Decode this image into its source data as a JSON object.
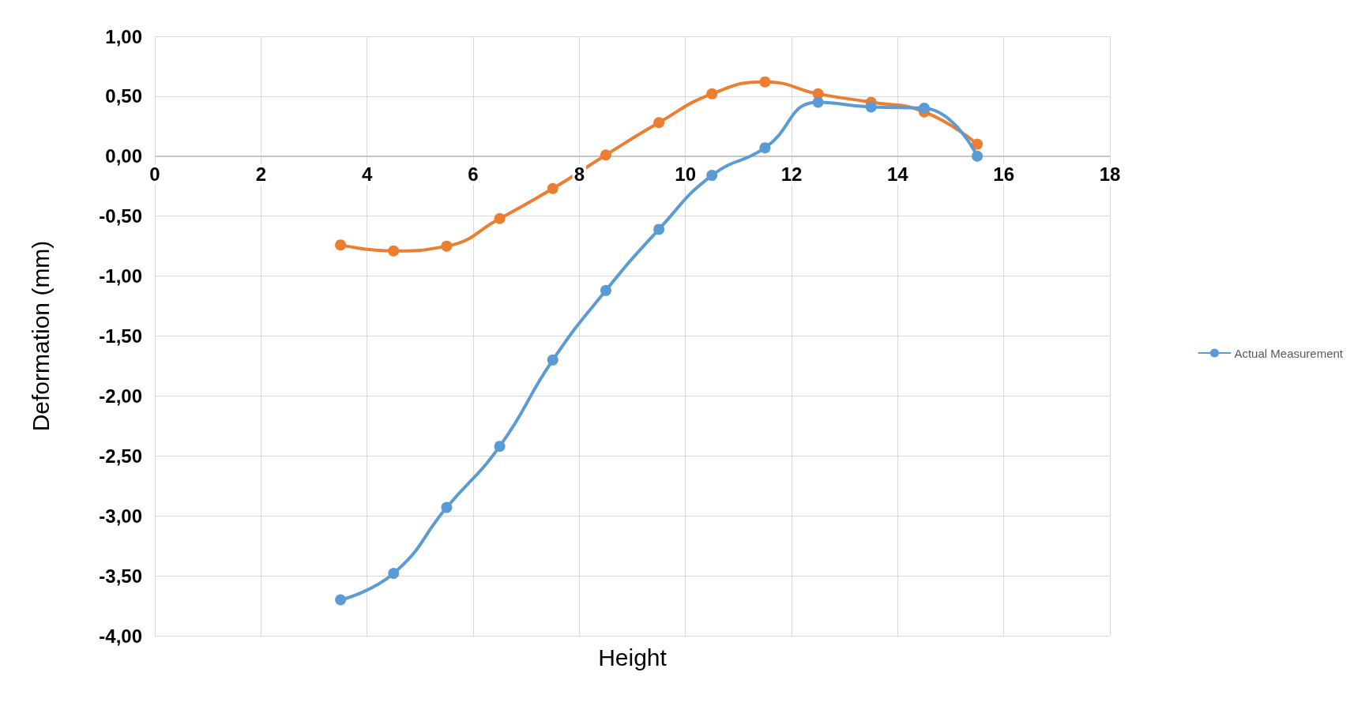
{
  "chart_data": {
    "type": "line",
    "xlabel": "Height",
    "ylabel": "Deformation (mm)",
    "x": [
      3.5,
      4.5,
      5.5,
      6.5,
      7.5,
      8.5,
      9.5,
      10.5,
      11.5,
      12.5,
      13.5,
      14.5,
      15.5
    ],
    "series": [
      {
        "name": "Actual Measurement",
        "color": "#5b9bd5",
        "values": [
          -3.7,
          -3.48,
          -2.93,
          -2.42,
          -1.7,
          -1.12,
          -0.61,
          -0.16,
          0.07,
          0.45,
          0.41,
          0.4,
          0.0
        ]
      },
      {
        "color": "#ed7d31",
        "values": [
          -0.74,
          -0.79,
          -0.75,
          -0.52,
          -0.27,
          0.01,
          0.28,
          0.52,
          0.62,
          0.52,
          0.45,
          0.37,
          0.1
        ]
      }
    ],
    "xlim": [
      0,
      18
    ],
    "xticks": [
      0,
      2,
      4,
      6,
      8,
      10,
      12,
      14,
      16,
      18
    ],
    "ylim": [
      -4,
      1
    ],
    "yticks": [
      {
        "value": -4,
        "label": "-4,00"
      },
      {
        "value": -3.5,
        "label": "-3,50"
      },
      {
        "value": -3,
        "label": "-3,00"
      },
      {
        "value": -2.5,
        "label": "-2,50"
      },
      {
        "value": -2,
        "label": "-2,00"
      },
      {
        "value": -1.5,
        "label": "-1,50"
      },
      {
        "value": -1,
        "label": "-1,00"
      },
      {
        "value": -0.5,
        "label": "-0,50"
      },
      {
        "value": 0,
        "label": "0,00"
      },
      {
        "value": 0.5,
        "label": "0,50"
      },
      {
        "value": 1,
        "label": "1,00"
      }
    ],
    "grid": true,
    "legend": "right",
    "marker": "circle"
  }
}
